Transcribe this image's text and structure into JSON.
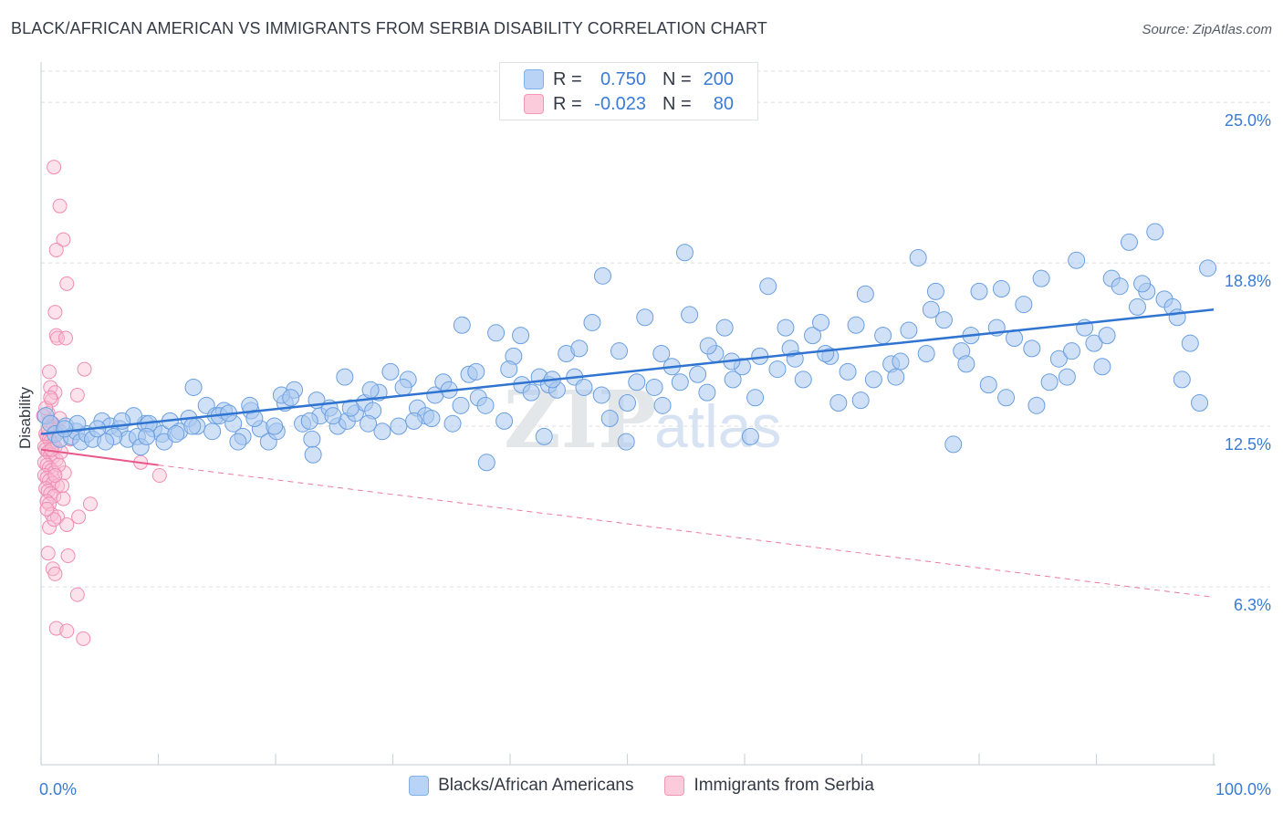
{
  "title": "BLACK/AFRICAN AMERICAN VS IMMIGRANTS FROM SERBIA DISABILITY CORRELATION CHART",
  "source": "Source: ZipAtlas.com",
  "watermark": {
    "zip": "ZIP",
    "atlas": "atlas"
  },
  "colors": {
    "blue": "#7fb0ea",
    "blue_line": "#2f74d0",
    "pink": "#f397b5",
    "pink_line": "#e8578a",
    "axis_text": "#3a7bd5",
    "grid": "#d8dde4"
  },
  "legend": {
    "rows": [
      {
        "r_label": "R =",
        "r_value": "0.750",
        "n_label": "N =",
        "n_value": "200"
      },
      {
        "r_label": "R =",
        "r_value": "-0.023",
        "n_label": "N =",
        "n_value": "80"
      }
    ]
  },
  "bottom_legend": {
    "series1": "Blacks/African Americans",
    "series2": "Immigrants from Serbia"
  },
  "chart_data": {
    "type": "scatter",
    "title": "BLACK/AFRICAN AMERICAN VS IMMIGRANTS FROM SERBIA DISABILITY CORRELATION CHART",
    "xlabel": "",
    "ylabel": "Disability",
    "xlim": [
      0,
      100
    ],
    "ylim": [
      0,
      26.2
    ],
    "x_tick_labels": [
      "0.0%",
      "100.0%"
    ],
    "y_ticks": [
      6.3,
      12.5,
      18.8,
      25.0
    ],
    "y_tick_labels": [
      "6.3%",
      "12.5%",
      "18.8%",
      "25.0%"
    ],
    "series": [
      {
        "name": "Blacks/African Americans",
        "color": "#7fb0ea",
        "trend": {
          "x": [
            0,
            100
          ],
          "y": [
            12.2,
            17.0
          ],
          "style": "solid"
        },
        "points": [
          [
            0.4,
            12.9
          ],
          [
            0.8,
            12.6
          ],
          [
            1.2,
            12.2
          ],
          [
            1.6,
            12.0
          ],
          [
            2.1,
            12.5
          ],
          [
            2.6,
            12.1
          ],
          [
            3.0,
            12.3
          ],
          [
            3.4,
            11.9
          ],
          [
            3.9,
            12.2
          ],
          [
            4.4,
            12.0
          ],
          [
            5.2,
            12.7
          ],
          [
            5.9,
            12.5
          ],
          [
            6.7,
            12.4
          ],
          [
            7.4,
            12.0
          ],
          [
            8.2,
            12.1
          ],
          [
            8.9,
            12.6
          ],
          [
            9.6,
            12.4
          ],
          [
            10.3,
            12.2
          ],
          [
            11.0,
            12.7
          ],
          [
            11.8,
            12.3
          ],
          [
            12.6,
            12.8
          ],
          [
            13.3,
            12.5
          ],
          [
            14.1,
            13.3
          ],
          [
            14.9,
            12.9
          ],
          [
            15.6,
            13.1
          ],
          [
            16.4,
            12.6
          ],
          [
            17.2,
            12.1
          ],
          [
            17.9,
            13.1
          ],
          [
            18.7,
            12.4
          ],
          [
            19.4,
            11.9
          ],
          [
            20.1,
            12.3
          ],
          [
            20.8,
            13.4
          ],
          [
            21.6,
            13.9
          ],
          [
            22.3,
            12.6
          ],
          [
            23.1,
            12.0
          ],
          [
            23.8,
            12.9
          ],
          [
            24.6,
            13.2
          ],
          [
            25.3,
            12.5
          ],
          [
            26.1,
            12.7
          ],
          [
            26.8,
            13.0
          ],
          [
            27.6,
            13.4
          ],
          [
            28.3,
            13.1
          ],
          [
            29.1,
            12.3
          ],
          [
            29.8,
            14.6
          ],
          [
            30.5,
            12.5
          ],
          [
            31.3,
            14.3
          ],
          [
            32.1,
            13.2
          ],
          [
            32.8,
            12.9
          ],
          [
            33.6,
            13.7
          ],
          [
            34.3,
            14.2
          ],
          [
            35.1,
            12.6
          ],
          [
            35.8,
            13.3
          ],
          [
            36.5,
            14.5
          ],
          [
            37.3,
            13.6
          ],
          [
            38.0,
            11.1
          ],
          [
            38.8,
            16.1
          ],
          [
            39.5,
            12.7
          ],
          [
            40.3,
            15.2
          ],
          [
            41.0,
            14.1
          ],
          [
            41.8,
            13.8
          ],
          [
            42.5,
            14.4
          ],
          [
            43.3,
            14.1
          ],
          [
            44.0,
            13.9
          ],
          [
            44.8,
            15.3
          ],
          [
            45.5,
            14.4
          ],
          [
            46.3,
            14.0
          ],
          [
            47.0,
            16.5
          ],
          [
            47.8,
            13.7
          ],
          [
            48.5,
            12.8
          ],
          [
            49.3,
            15.4
          ],
          [
            50.0,
            13.4
          ],
          [
            50.8,
            14.2
          ],
          [
            51.5,
            16.7
          ],
          [
            52.3,
            14.0
          ],
          [
            53.0,
            13.3
          ],
          [
            53.8,
            14.8
          ],
          [
            54.5,
            14.2
          ],
          [
            55.3,
            16.8
          ],
          [
            56.0,
            14.5
          ],
          [
            56.8,
            13.8
          ],
          [
            57.5,
            15.3
          ],
          [
            58.3,
            16.3
          ],
          [
            59.0,
            14.3
          ],
          [
            59.8,
            14.8
          ],
          [
            60.5,
            12.1
          ],
          [
            61.3,
            15.2
          ],
          [
            62.0,
            17.9
          ],
          [
            62.8,
            14.7
          ],
          [
            63.5,
            16.3
          ],
          [
            64.3,
            15.1
          ],
          [
            65.0,
            14.3
          ],
          [
            65.8,
            16.0
          ],
          [
            66.5,
            16.5
          ],
          [
            67.3,
            15.2
          ],
          [
            68.0,
            13.4
          ],
          [
            68.8,
            14.6
          ],
          [
            69.5,
            16.4
          ],
          [
            70.3,
            17.6
          ],
          [
            71.0,
            14.3
          ],
          [
            71.8,
            16.0
          ],
          [
            72.5,
            14.9
          ],
          [
            73.3,
            15.0
          ],
          [
            74.0,
            16.2
          ],
          [
            74.8,
            19.0
          ],
          [
            75.5,
            15.3
          ],
          [
            76.3,
            17.7
          ],
          [
            77.0,
            16.6
          ],
          [
            77.8,
            11.8
          ],
          [
            78.5,
            15.4
          ],
          [
            79.3,
            16.0
          ],
          [
            80.0,
            17.7
          ],
          [
            80.8,
            14.1
          ],
          [
            81.5,
            16.3
          ],
          [
            82.3,
            13.6
          ],
          [
            83.0,
            15.9
          ],
          [
            83.8,
            17.2
          ],
          [
            84.5,
            15.5
          ],
          [
            85.3,
            18.2
          ],
          [
            86.0,
            14.2
          ],
          [
            86.8,
            15.1
          ],
          [
            87.5,
            14.4
          ],
          [
            88.3,
            18.9
          ],
          [
            89.0,
            16.3
          ],
          [
            89.8,
            15.7
          ],
          [
            90.5,
            14.8
          ],
          [
            91.3,
            18.2
          ],
          [
            92.0,
            17.9
          ],
          [
            92.8,
            19.6
          ],
          [
            93.5,
            17.1
          ],
          [
            94.3,
            17.7
          ],
          [
            95.0,
            20.0
          ],
          [
            95.8,
            17.4
          ],
          [
            96.5,
            17.1
          ],
          [
            97.3,
            14.3
          ],
          [
            98.0,
            15.7
          ],
          [
            98.8,
            13.4
          ],
          [
            99.5,
            18.6
          ],
          [
            10.5,
            11.9
          ],
          [
            13.0,
            14.0
          ],
          [
            15.2,
            12.9
          ],
          [
            17.8,
            13.3
          ],
          [
            20.5,
            13.7
          ],
          [
            22.9,
            12.7
          ],
          [
            25.9,
            14.4
          ],
          [
            27.9,
            12.6
          ],
          [
            30.9,
            14.0
          ],
          [
            33.3,
            12.8
          ],
          [
            35.9,
            16.4
          ],
          [
            37.9,
            13.3
          ],
          [
            40.9,
            16.0
          ],
          [
            42.9,
            12.1
          ],
          [
            45.9,
            15.5
          ],
          [
            47.9,
            18.3
          ],
          [
            49.9,
            11.9
          ],
          [
            52.9,
            15.3
          ],
          [
            54.9,
            19.2
          ],
          [
            56.9,
            15.6
          ],
          [
            58.9,
            15.0
          ],
          [
            60.9,
            13.6
          ],
          [
            63.9,
            15.5
          ],
          [
            66.9,
            15.3
          ],
          [
            69.9,
            13.5
          ],
          [
            72.9,
            14.4
          ],
          [
            75.9,
            17.0
          ],
          [
            78.9,
            14.9
          ],
          [
            81.9,
            17.8
          ],
          [
            84.9,
            13.3
          ],
          [
            87.9,
            15.4
          ],
          [
            90.9,
            16.0
          ],
          [
            93.9,
            18.0
          ],
          [
            96.9,
            16.7
          ],
          [
            6.2,
            12.1
          ],
          [
            7.9,
            12.9
          ],
          [
            9.2,
            12.6
          ],
          [
            11.5,
            12.2
          ],
          [
            12.9,
            12.5
          ],
          [
            14.6,
            12.3
          ],
          [
            16.0,
            13.0
          ],
          [
            18.2,
            12.8
          ],
          [
            19.9,
            12.5
          ],
          [
            21.3,
            13.6
          ],
          [
            23.5,
            13.5
          ],
          [
            24.9,
            12.9
          ],
          [
            26.4,
            13.2
          ],
          [
            28.8,
            13.8
          ],
          [
            31.8,
            12.7
          ],
          [
            34.8,
            13.9
          ],
          [
            37.1,
            14.6
          ],
          [
            39.9,
            14.7
          ],
          [
            43.6,
            14.3
          ],
          [
            3.1,
            12.6
          ],
          [
            2.0,
            12.4
          ],
          [
            5.5,
            11.9
          ],
          [
            8.5,
            11.7
          ],
          [
            23.2,
            11.4
          ],
          [
            9.0,
            12.1
          ],
          [
            6.9,
            12.7
          ],
          [
            4.8,
            12.4
          ],
          [
            16.8,
            11.9
          ],
          [
            28.1,
            13.9
          ]
        ]
      },
      {
        "name": "Immigrants from Serbia",
        "color": "#f397b5",
        "trend": {
          "x": [
            0,
            10
          ],
          "y": [
            11.6,
            11.0
          ],
          "style": "solid",
          "dashed_extension": {
            "x": [
              10,
              100
            ],
            "y": [
              11.0,
              5.9
            ]
          }
        },
        "points": [
          [
            1.1,
            22.5
          ],
          [
            1.6,
            21.0
          ],
          [
            1.9,
            19.7
          ],
          [
            1.3,
            19.3
          ],
          [
            2.2,
            18.0
          ],
          [
            1.2,
            16.9
          ],
          [
            1.3,
            16.0
          ],
          [
            1.4,
            15.9
          ],
          [
            2.1,
            15.9
          ],
          [
            0.7,
            14.6
          ],
          [
            3.7,
            14.7
          ],
          [
            0.8,
            14.0
          ],
          [
            1.2,
            13.8
          ],
          [
            3.1,
            13.7
          ],
          [
            0.9,
            13.5
          ],
          [
            0.6,
            13.0
          ],
          [
            0.7,
            12.7
          ],
          [
            1.0,
            12.6
          ],
          [
            1.1,
            12.5
          ],
          [
            1.3,
            12.4
          ],
          [
            1.6,
            12.3
          ],
          [
            0.4,
            12.2
          ],
          [
            0.5,
            12.1
          ],
          [
            0.7,
            12.0
          ],
          [
            0.8,
            11.9
          ],
          [
            1.0,
            11.8
          ],
          [
            1.2,
            11.7
          ],
          [
            0.3,
            11.7
          ],
          [
            0.4,
            11.6
          ],
          [
            0.6,
            11.5
          ],
          [
            0.8,
            11.4
          ],
          [
            1.0,
            11.3
          ],
          [
            1.3,
            11.2
          ],
          [
            0.3,
            11.1
          ],
          [
            0.5,
            11.0
          ],
          [
            0.7,
            10.9
          ],
          [
            0.9,
            10.8
          ],
          [
            1.1,
            10.7
          ],
          [
            0.3,
            10.6
          ],
          [
            0.5,
            10.5
          ],
          [
            0.7,
            10.4
          ],
          [
            1.0,
            10.3
          ],
          [
            1.4,
            10.2
          ],
          [
            0.4,
            10.1
          ],
          [
            0.6,
            10.0
          ],
          [
            0.8,
            9.9
          ],
          [
            1.1,
            9.8
          ],
          [
            2.0,
            10.7
          ],
          [
            1.8,
            10.2
          ],
          [
            1.9,
            9.7
          ],
          [
            0.5,
            9.6
          ],
          [
            0.7,
            9.5
          ],
          [
            0.9,
            9.1
          ],
          [
            1.4,
            9.0
          ],
          [
            3.2,
            9.0
          ],
          [
            4.2,
            9.5
          ],
          [
            0.7,
            8.6
          ],
          [
            1.1,
            8.9
          ],
          [
            2.2,
            8.7
          ],
          [
            0.6,
            7.6
          ],
          [
            2.3,
            7.5
          ],
          [
            1.0,
            7.0
          ],
          [
            1.2,
            6.8
          ],
          [
            3.1,
            6.0
          ],
          [
            1.3,
            4.7
          ],
          [
            2.2,
            4.6
          ],
          [
            3.6,
            4.3
          ],
          [
            8.5,
            11.1
          ],
          [
            10.1,
            10.6
          ],
          [
            0.2,
            12.9
          ],
          [
            0.4,
            13.2
          ],
          [
            0.6,
            12.4
          ],
          [
            1.5,
            11.0
          ],
          [
            1.7,
            11.5
          ],
          [
            2.5,
            12.0
          ],
          [
            0.9,
            11.6
          ],
          [
            1.2,
            10.6
          ],
          [
            0.5,
            9.3
          ],
          [
            0.8,
            13.6
          ],
          [
            1.6,
            12.8
          ]
        ]
      }
    ]
  }
}
